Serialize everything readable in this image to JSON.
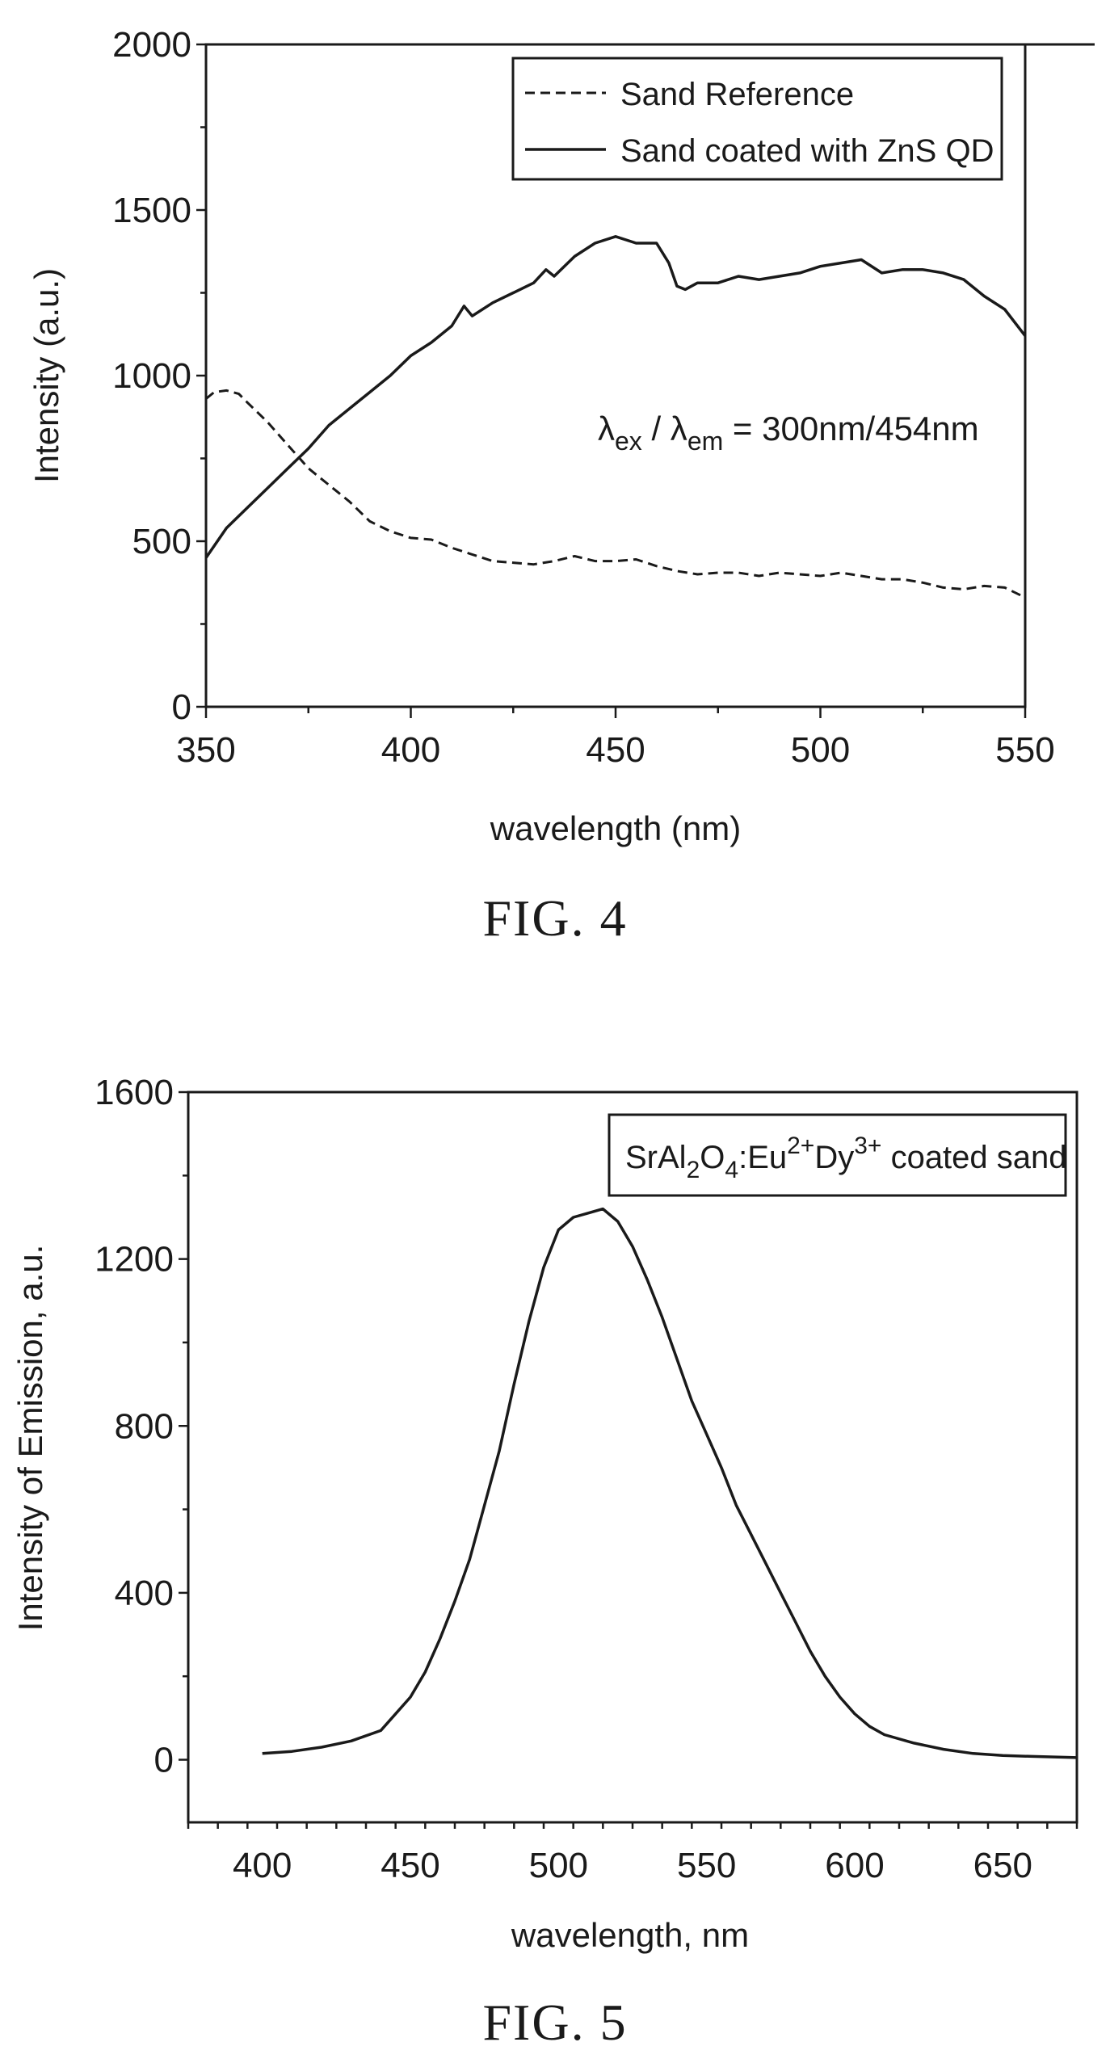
{
  "chart_data": [
    {
      "type": "line",
      "caption": "FIG. 4",
      "xlabel": "wavelength (nm)",
      "ylabel": "Intensity (a.u.)",
      "xlim": [
        350,
        550
      ],
      "ylim": [
        0,
        2000
      ],
      "xticks": [
        350,
        400,
        450,
        500,
        550
      ],
      "yticks": [
        0,
        500,
        1000,
        1500,
        2000
      ],
      "legend_position": "top-right",
      "annotation": {
        "prefix": "λ",
        "sub1": "ex",
        "mid": " / λ",
        "sub2": "em",
        "suffix": " = 300nm/454nm"
      },
      "series": [
        {
          "name": "Sand Reference",
          "style": "dashed",
          "x": [
            350,
            352,
            355,
            358,
            360,
            365,
            370,
            375,
            380,
            385,
            390,
            395,
            400,
            405,
            410,
            415,
            420,
            425,
            430,
            435,
            440,
            445,
            450,
            455,
            460,
            465,
            470,
            475,
            480,
            485,
            490,
            495,
            500,
            505,
            510,
            515,
            520,
            525,
            530,
            535,
            540,
            545,
            550
          ],
          "y": [
            930,
            950,
            955,
            945,
            920,
            860,
            790,
            720,
            670,
            620,
            560,
            530,
            510,
            505,
            480,
            460,
            440,
            435,
            430,
            440,
            455,
            440,
            440,
            445,
            425,
            410,
            400,
            405,
            405,
            395,
            405,
            400,
            395,
            405,
            395,
            385,
            385,
            375,
            360,
            355,
            365,
            360,
            330
          ]
        },
        {
          "name": "Sand coated with ZnS QD",
          "style": "solid",
          "x": [
            350,
            355,
            360,
            365,
            370,
            375,
            380,
            385,
            390,
            395,
            400,
            405,
            410,
            413,
            415,
            420,
            425,
            430,
            433,
            435,
            440,
            445,
            450,
            455,
            460,
            463,
            465,
            467,
            470,
            475,
            480,
            485,
            490,
            495,
            500,
            505,
            510,
            515,
            520,
            525,
            530,
            535,
            540,
            545,
            550
          ],
          "y": [
            450,
            540,
            600,
            660,
            720,
            780,
            850,
            900,
            950,
            1000,
            1060,
            1100,
            1150,
            1210,
            1180,
            1220,
            1250,
            1280,
            1320,
            1300,
            1360,
            1400,
            1420,
            1400,
            1400,
            1340,
            1270,
            1260,
            1280,
            1280,
            1300,
            1290,
            1300,
            1310,
            1330,
            1340,
            1350,
            1310,
            1320,
            1320,
            1310,
            1290,
            1240,
            1200,
            1120
          ]
        }
      ]
    },
    {
      "type": "line",
      "caption": "FIG. 5",
      "xlabel": "wavelength, nm",
      "ylabel": "Intensity of Emission, a.u.",
      "xlim": [
        375,
        675
      ],
      "ylim": [
        -150,
        1600
      ],
      "xticks": [
        400,
        450,
        500,
        550,
        600,
        650
      ],
      "yticks": [
        0,
        400,
        800,
        1200,
        1600
      ],
      "legend_position": "top-right",
      "legend": {
        "parts": [
          {
            "t": "SrAl",
            "s": "n"
          },
          {
            "t": "2",
            "s": "sub"
          },
          {
            "t": "O",
            "s": "n"
          },
          {
            "t": "4",
            "s": "sub"
          },
          {
            "t": ":Eu",
            "s": "n"
          },
          {
            "t": "2+",
            "s": "sup"
          },
          {
            "t": "Dy",
            "s": "n"
          },
          {
            "t": "3+",
            "s": "sup"
          },
          {
            "t": " coated sand",
            "s": "n"
          }
        ]
      },
      "series": [
        {
          "name": "SrAl2O4:Eu2+Dy3+ coated sand",
          "style": "solid",
          "x": [
            400,
            410,
            420,
            430,
            440,
            445,
            450,
            455,
            460,
            465,
            470,
            475,
            480,
            485,
            490,
            495,
            500,
            505,
            510,
            515,
            520,
            525,
            530,
            535,
            540,
            545,
            550,
            555,
            560,
            565,
            570,
            575,
            580,
            585,
            590,
            595,
            600,
            605,
            610,
            620,
            630,
            640,
            650,
            660,
            675
          ],
          "y": [
            15,
            20,
            30,
            45,
            70,
            110,
            150,
            210,
            290,
            380,
            480,
            610,
            740,
            900,
            1050,
            1180,
            1270,
            1300,
            1310,
            1320,
            1290,
            1230,
            1150,
            1060,
            960,
            860,
            780,
            700,
            610,
            540,
            470,
            400,
            330,
            260,
            200,
            150,
            110,
            80,
            60,
            40,
            25,
            15,
            10,
            8,
            5
          ]
        }
      ]
    }
  ]
}
